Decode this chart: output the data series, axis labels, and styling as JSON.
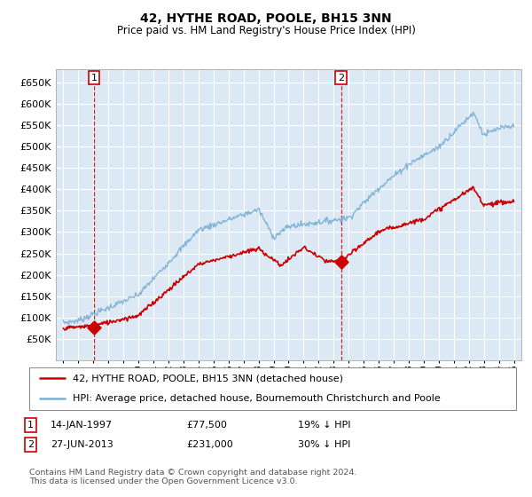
{
  "title": "42, HYTHE ROAD, POOLE, BH15 3NN",
  "subtitle": "Price paid vs. HM Land Registry's House Price Index (HPI)",
  "legend_line1": "42, HYTHE ROAD, POOLE, BH15 3NN (detached house)",
  "legend_line2": "HPI: Average price, detached house, Bournemouth Christchurch and Poole",
  "footer": "Contains HM Land Registry data © Crown copyright and database right 2024.\nThis data is licensed under the Open Government Licence v3.0.",
  "price_paid_color": "#cc0000",
  "hpi_color": "#7ab0d4",
  "background_color": "#dce9f5",
  "ylim": [
    0,
    680000
  ],
  "yticks": [
    0,
    50000,
    100000,
    150000,
    200000,
    250000,
    300000,
    350000,
    400000,
    450000,
    500000,
    550000,
    600000,
    650000
  ],
  "marker1_x": 1997.04,
  "marker1_y": 77500,
  "marker2_x": 2013.49,
  "marker2_y": 231000,
  "xmin": 1994.5,
  "xmax": 2025.5
}
